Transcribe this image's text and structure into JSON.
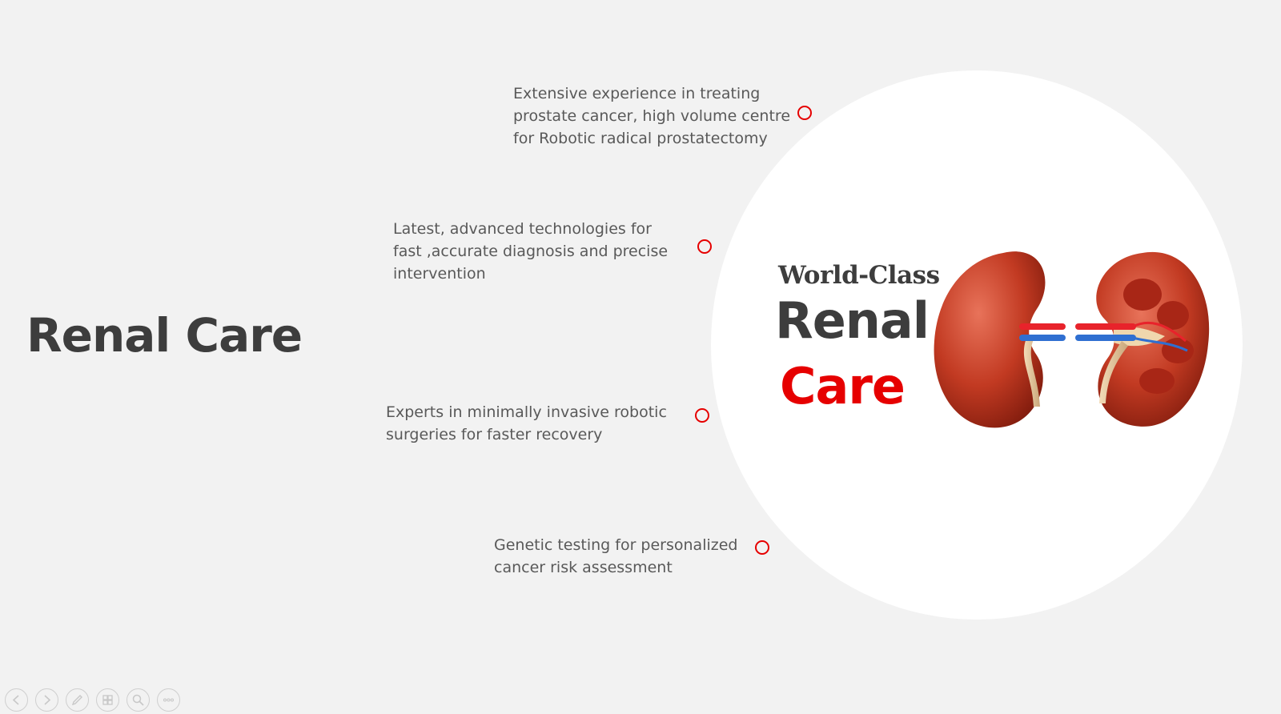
{
  "slide": {
    "title": "Renal Care",
    "hero": {
      "line1": "World-Class",
      "line2": "Renal",
      "line3": "Care"
    },
    "features": [
      {
        "text": "Extensive experience in treating\nprostate cancer, high volume centre\nfor Robotic radical prostatectomy"
      },
      {
        "text": "Latest, advanced technologies for\nfast ,accurate diagnosis and precise\nintervention"
      },
      {
        "text": "Experts in minimally invasive robotic\nsurgeries for faster recovery"
      },
      {
        "text": "Genetic testing for personalized\ncancer risk assessment"
      }
    ],
    "colors": {
      "accent": "#e60000",
      "title": "#3d3d3d",
      "body_text": "#595959",
      "background": "#f2f2f2"
    }
  },
  "toolbar": {
    "buttons": [
      {
        "icon": "previous-icon"
      },
      {
        "icon": "next-icon"
      },
      {
        "icon": "pen-icon"
      },
      {
        "icon": "slides-icon"
      },
      {
        "icon": "zoom-icon"
      },
      {
        "icon": "more-icon"
      }
    ]
  }
}
